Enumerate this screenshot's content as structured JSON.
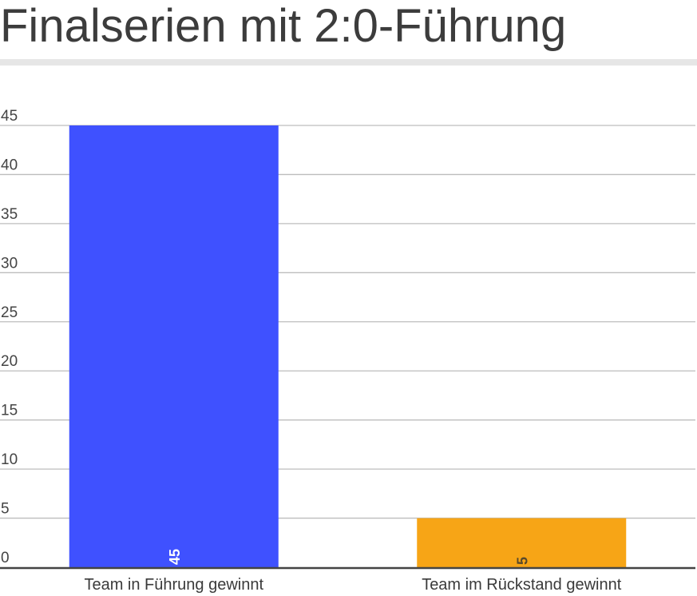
{
  "chart_data": {
    "type": "bar",
    "title": "Finalserien mit 2:0-Führung",
    "categories": [
      "Team in Führung gewinnt",
      "Team im Rückstand gewinnt"
    ],
    "values": [
      45,
      5
    ],
    "colors": [
      "#3f51ff",
      "#f7a516"
    ],
    "data_label_colors": [
      "#ffffff",
      "#5a4a2a"
    ],
    "ylim": [
      0,
      45
    ],
    "yticks": [
      0,
      5,
      10,
      15,
      20,
      25,
      30,
      35,
      40,
      45
    ],
    "grid": true,
    "legend": "none"
  }
}
